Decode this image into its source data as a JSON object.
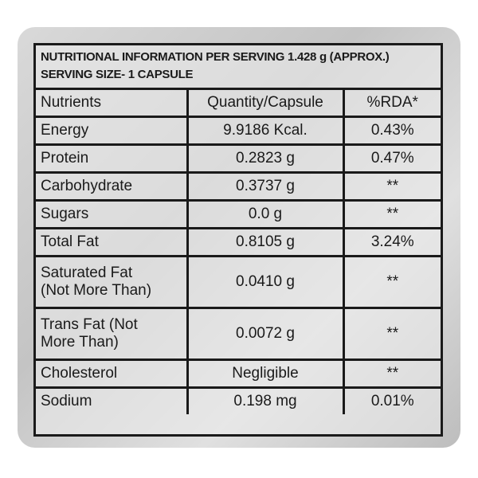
{
  "header": {
    "title": "NUTRITIONAL INFORMATION PER SERVING 1.428 g (APPROX.)",
    "serving_size": "SERVING SIZE- 1 CAPSULE"
  },
  "table": {
    "columns": [
      "Nutrients",
      "Quantity/Capsule",
      "%RDA*"
    ],
    "rows": [
      [
        [
          "Energy"
        ],
        "9.9186 Kcal.",
        "0.43%"
      ],
      [
        [
          "Protein"
        ],
        "0.2823 g",
        "0.47%"
      ],
      [
        [
          "Carbohydrate"
        ],
        "0.3737 g",
        "**"
      ],
      [
        [
          "Sugars"
        ],
        "0.0 g",
        "**"
      ],
      [
        [
          "Total Fat"
        ],
        "0.8105 g",
        "3.24%"
      ],
      [
        [
          "Saturated Fat",
          "(Not More Than)"
        ],
        "0.0410 g",
        "**"
      ],
      [
        [
          "Trans Fat (Not",
          "More Than)"
        ],
        "0.0072 g",
        "**"
      ],
      [
        [
          "Cholesterol"
        ],
        "Negligible",
        "**"
      ],
      [
        [
          "Sodium"
        ],
        "0.198 mg",
        "0.01%"
      ]
    ]
  }
}
